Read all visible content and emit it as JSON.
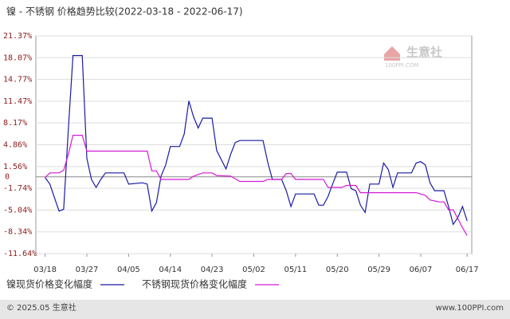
{
  "chart_data": {
    "type": "line",
    "title": "镍 - 不锈钢 价格趋势比较(2022-03-18 - 2022-06-17)",
    "ylim": [
      -11.64,
      21.37
    ],
    "yticks": [
      {
        "value": 21.37,
        "label": "21.37%"
      },
      {
        "value": 18.07,
        "label": "18.07%"
      },
      {
        "value": 14.77,
        "label": "14.77%"
      },
      {
        "value": 11.47,
        "label": "11.47%"
      },
      {
        "value": 8.17,
        "label": "8.17%"
      },
      {
        "value": 4.86,
        "label": "4.86%"
      },
      {
        "value": 1.56,
        "label": "1.56%"
      },
      0,
      {
        "value": -1.74,
        "label": "-1.74%"
      },
      {
        "value": -5.04,
        "label": "-5.04%"
      },
      {
        "value": -8.34,
        "label": "-8.34%"
      },
      {
        "value": -11.64,
        "label": "-11.64%"
      }
    ],
    "xlim": [
      "2022-03-16",
      "2022-06-18"
    ],
    "xticks": [
      {
        "value": "2022-03-18",
        "label": "03/18"
      },
      {
        "value": "2022-03-27",
        "label": "03/27"
      },
      {
        "value": "2022-04-05",
        "label": "04/05"
      },
      {
        "value": "2022-04-14",
        "label": "04/14"
      },
      {
        "value": "2022-04-23",
        "label": "04/23"
      },
      {
        "value": "2022-05-02",
        "label": "05/02"
      },
      {
        "value": "2022-05-11",
        "label": "05/11"
      },
      {
        "value": "2022-05-20",
        "label": "05/20"
      },
      {
        "value": "2022-05-29",
        "label": "05/29"
      },
      {
        "value": "2022-06-07",
        "label": "06/07"
      },
      {
        "value": "2022-06-17",
        "label": "06/17"
      }
    ],
    "grid": true,
    "series": [
      {
        "name": "镍现货价格变化幅度",
        "color": "#1a1aa6",
        "x": [
          "2022-03-18",
          "2022-03-19",
          "2022-03-21",
          "2022-03-22",
          "2022-03-23",
          "2022-03-24",
          "2022-03-26",
          "2022-03-27",
          "2022-03-28",
          "2022-03-29",
          "2022-03-30",
          "2022-03-31",
          "2022-04-04",
          "2022-04-05",
          "2022-04-08",
          "2022-04-09",
          "2022-04-10",
          "2022-04-11",
          "2022-04-12",
          "2022-04-13",
          "2022-04-14",
          "2022-04-16",
          "2022-04-17",
          "2022-04-18",
          "2022-04-19",
          "2022-04-20",
          "2022-04-21",
          "2022-04-23",
          "2022-04-24",
          "2022-04-26",
          "2022-04-27",
          "2022-04-28",
          "2022-04-29",
          "2022-05-04",
          "2022-05-05",
          "2022-05-06",
          "2022-05-08",
          "2022-05-09",
          "2022-05-10",
          "2022-05-11",
          "2022-05-15",
          "2022-05-16",
          "2022-05-17",
          "2022-05-18",
          "2022-05-19",
          "2022-05-20",
          "2022-05-22",
          "2022-05-23",
          "2022-05-24",
          "2022-05-25",
          "2022-05-26",
          "2022-05-27",
          "2022-05-29",
          "2022-05-30",
          "2022-05-31",
          "2022-06-01",
          "2022-06-02",
          "2022-06-05",
          "2022-06-06",
          "2022-06-07",
          "2022-06-08",
          "2022-06-09",
          "2022-06-10",
          "2022-06-12",
          "2022-06-13",
          "2022-06-14",
          "2022-06-15",
          "2022-06-16",
          "2022-06-17"
        ],
        "values": [
          -0.1,
          -1.1,
          -5.2,
          -4.9,
          7.1,
          18.4,
          18.4,
          2.8,
          -0.4,
          -1.6,
          -0.4,
          0.6,
          0.6,
          -1.1,
          -0.9,
          -1.1,
          -5.2,
          -3.9,
          0.1,
          1.8,
          4.6,
          4.6,
          6.5,
          11.5,
          9.1,
          7.4,
          8.9,
          8.9,
          4.0,
          1.2,
          3.4,
          5.2,
          5.5,
          5.5,
          2.2,
          -0.4,
          -0.4,
          -2.1,
          -4.5,
          -2.6,
          -2.6,
          -4.3,
          -4.3,
          -3.0,
          -1.1,
          0.7,
          0.7,
          -1.8,
          -2.1,
          -4.3,
          -5.4,
          -1.1,
          -1.1,
          2.1,
          1.1,
          -1.6,
          0.6,
          0.6,
          2.1,
          2.3,
          1.8,
          -0.9,
          -2.1,
          -2.1,
          -4.5,
          -7.2,
          -6.2,
          -4.5,
          -6.7
        ]
      },
      {
        "name": "不锈钢现货价格变化幅度",
        "color": "#d41ad4",
        "x": [
          "2022-03-18",
          "2022-03-19",
          "2022-03-21",
          "2022-03-22",
          "2022-03-23",
          "2022-03-24",
          "2022-03-26",
          "2022-03-27",
          "2022-04-09",
          "2022-04-10",
          "2022-04-11",
          "2022-04-12",
          "2022-04-18",
          "2022-04-19",
          "2022-04-21",
          "2022-04-23",
          "2022-04-24",
          "2022-04-27",
          "2022-04-29",
          "2022-05-04",
          "2022-05-05",
          "2022-05-08",
          "2022-05-09",
          "2022-05-10",
          "2022-05-11",
          "2022-05-17",
          "2022-05-18",
          "2022-05-21",
          "2022-05-22",
          "2022-05-24",
          "2022-05-25",
          "2022-06-06",
          "2022-06-08",
          "2022-06-09",
          "2022-06-11",
          "2022-06-12",
          "2022-06-13",
          "2022-06-14",
          "2022-06-16",
          "2022-06-17"
        ],
        "values": [
          -0.1,
          0.6,
          0.6,
          1.0,
          3.4,
          6.3,
          6.3,
          3.9,
          3.9,
          0.9,
          0.9,
          -0.4,
          -0.4,
          0.1,
          0.6,
          0.6,
          0.2,
          0.1,
          -0.7,
          -0.7,
          -0.4,
          -0.4,
          0.5,
          0.5,
          -0.4,
          -0.4,
          -1.6,
          -1.6,
          -1.3,
          -1.3,
          -2.4,
          -2.4,
          -2.8,
          -3.5,
          -3.8,
          -3.8,
          -5.0,
          -5.0,
          -7.7,
          -8.9
        ]
      }
    ],
    "watermark": {
      "name": "生意社",
      "site": "100PPI.COM"
    },
    "footer": {
      "left": "© 2025.05 生意社",
      "right": "www.100PPI.com"
    }
  }
}
